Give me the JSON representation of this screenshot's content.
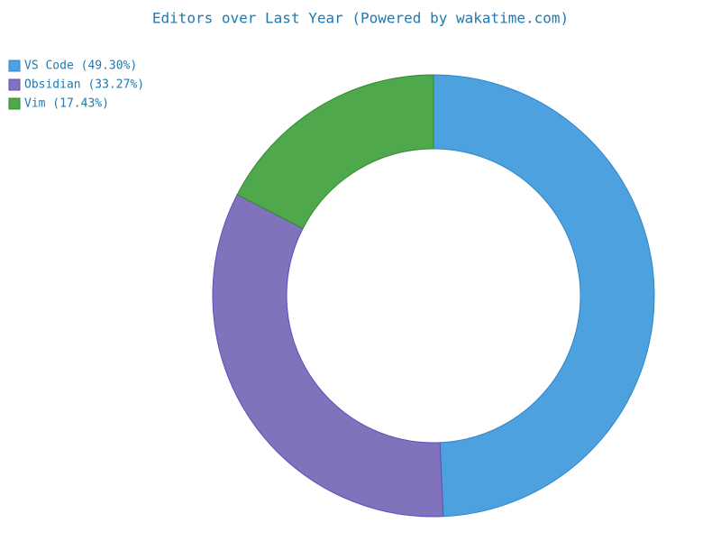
{
  "chart_data": {
    "type": "donut",
    "title": "Editors over Last Year (Powered by wakatime.com)",
    "categories": [
      "VS Code (49.30%)",
      "Obsidian (33.27%)",
      "Vim (17.43%)"
    ],
    "values": [
      49.3,
      33.27,
      17.43
    ],
    "colors": [
      "#4ca1de",
      "#8073bb",
      "#50a84d"
    ],
    "stroke_colors": [
      "#2f86c9",
      "#5b4ec0",
      "#2f8a2f"
    ],
    "legend": "top-left"
  }
}
